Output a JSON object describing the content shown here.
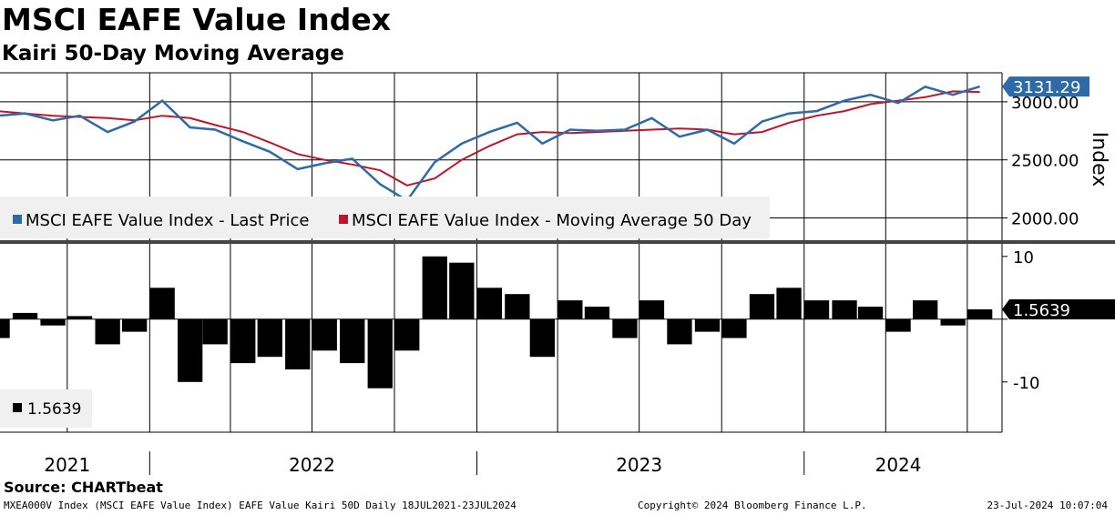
{
  "header": {
    "title": "MSCI EAFE Value Index",
    "subtitle": "Kairi 50-Day Moving Average"
  },
  "footer": {
    "source": "Source: CHARTbeat",
    "ticker_info": "MXEA000V Index (MSCI EAFE Value Index) EAFE Value Kairi 50D  Daily 18JUL2021-23JUL2024",
    "copyright": "Copyright© 2024 Bloomberg Finance L.P.",
    "timestamp": "23-Jul-2024 10:07:04"
  },
  "colors": {
    "price": "#2e6aa6",
    "moving_average": "#c0142c",
    "kairi": "#000000",
    "grid": "#000000",
    "legend_bg": "#f0f0f0",
    "last_value_blue": "#2e6aa6",
    "last_value_black": "#000000"
  },
  "chart_data": [
    {
      "type": "line",
      "title": "MSCI EAFE Value Index",
      "ylabel": "Index",
      "ylim": [
        1800,
        3250
      ],
      "yticks": [
        2000,
        2500,
        3000
      ],
      "ytick_labels": [
        "2000.00",
        "2500.00",
        "3000.00"
      ],
      "x_year_labels": [
        "2021",
        "2022",
        "2023",
        "2024"
      ],
      "x_range": [
        "2021-07-18",
        "2024-07-23"
      ],
      "last_value_label": "3131.29",
      "legend": [
        "MSCI EAFE Value Index - Last Price",
        "MSCI EAFE Value Index - Moving Average 50 Day"
      ],
      "series": [
        {
          "name": "MSCI EAFE Value Index - Last Price",
          "x": [
            "2021-07",
            "2021-08",
            "2021-09",
            "2021-10",
            "2021-11",
            "2021-12",
            "2022-01",
            "2022-02",
            "2022-03",
            "2022-04",
            "2022-05",
            "2022-06",
            "2022-07",
            "2022-08",
            "2022-09",
            "2022-10",
            "2022-11",
            "2022-12",
            "2023-01",
            "2023-02",
            "2023-03",
            "2023-04",
            "2023-05",
            "2023-06",
            "2023-07",
            "2023-08",
            "2023-09",
            "2023-10",
            "2023-11",
            "2023-12",
            "2024-01",
            "2024-02",
            "2024-03",
            "2024-04",
            "2024-05",
            "2024-06",
            "2024-07"
          ],
          "values": [
            2880,
            2900,
            2840,
            2880,
            2740,
            2830,
            3010,
            2780,
            2760,
            2660,
            2570,
            2420,
            2470,
            2510,
            2290,
            2150,
            2480,
            2640,
            2740,
            2820,
            2640,
            2760,
            2750,
            2760,
            2860,
            2700,
            2760,
            2640,
            2830,
            2900,
            2920,
            3010,
            3060,
            2990,
            3130,
            3060,
            3131.29
          ]
        },
        {
          "name": "MSCI EAFE Value Index - Moving Average 50 Day",
          "x": [
            "2021-07",
            "2021-08",
            "2021-09",
            "2021-10",
            "2021-11",
            "2021-12",
            "2022-01",
            "2022-02",
            "2022-03",
            "2022-04",
            "2022-05",
            "2022-06",
            "2022-07",
            "2022-08",
            "2022-09",
            "2022-10",
            "2022-11",
            "2022-12",
            "2023-01",
            "2023-02",
            "2023-03",
            "2023-04",
            "2023-05",
            "2023-06",
            "2023-07",
            "2023-08",
            "2023-09",
            "2023-10",
            "2023-11",
            "2023-12",
            "2024-01",
            "2024-02",
            "2024-03",
            "2024-04",
            "2024-05",
            "2024-06",
            "2024-07"
          ],
          "values": [
            2920,
            2900,
            2880,
            2870,
            2860,
            2840,
            2880,
            2860,
            2800,
            2740,
            2650,
            2550,
            2500,
            2460,
            2410,
            2280,
            2340,
            2500,
            2620,
            2720,
            2740,
            2730,
            2740,
            2750,
            2760,
            2770,
            2760,
            2720,
            2740,
            2820,
            2880,
            2920,
            2980,
            3010,
            3040,
            3090,
            3085
          ]
        }
      ]
    },
    {
      "type": "bar",
      "title": "Kairi 50-Day Moving Average",
      "ylim": [
        -18,
        12
      ],
      "yticks": [
        -10,
        0,
        10
      ],
      "ytick_labels": [
        "-10",
        "",
        "10"
      ],
      "last_value_label": "1.5639",
      "legend": [
        "1.5639"
      ],
      "series": [
        {
          "name": "Kairi 50D",
          "x": [
            "2021-07",
            "2021-08",
            "2021-09",
            "2021-10",
            "2021-11",
            "2021-12",
            "2022-01",
            "2022-02",
            "2022-03",
            "2022-04",
            "2022-05",
            "2022-06",
            "2022-07",
            "2022-08",
            "2022-09",
            "2022-10",
            "2022-11",
            "2022-12",
            "2023-01",
            "2023-02",
            "2023-03",
            "2023-04",
            "2023-05",
            "2023-06",
            "2023-07",
            "2023-08",
            "2023-09",
            "2023-10",
            "2023-11",
            "2023-12",
            "2024-01",
            "2024-02",
            "2024-03",
            "2024-04",
            "2024-05",
            "2024-06",
            "2024-07"
          ],
          "values": [
            -3,
            1,
            -1,
            0.5,
            -4,
            -2,
            5,
            -10,
            -4,
            -7,
            -6,
            -8,
            -5,
            -7,
            -11,
            -5,
            10,
            9,
            5,
            4,
            -6,
            3,
            2,
            -3,
            3,
            -4,
            -2,
            -3,
            4,
            5,
            3,
            3,
            2,
            -2,
            3,
            -1,
            1.5639
          ]
        }
      ]
    }
  ]
}
